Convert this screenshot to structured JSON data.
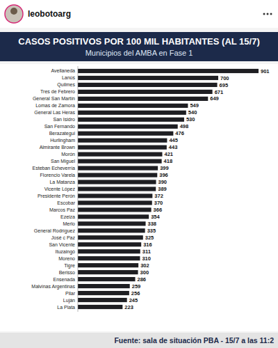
{
  "header": {
    "username": "leobotoarg"
  },
  "chart_data": {
    "type": "bar",
    "orientation": "horizontal",
    "title": "CASOS POSITIVOS POR 100 MIL HABITANTES (AL 15/7)",
    "subtitle": "Municipios del AMBA en Fase 1",
    "annotations": [
      "Fuente: sala de situación  PBA - 15/7 a las 11:2"
    ],
    "categories": [
      "Avellaneda",
      "Lanús",
      "Quilmes",
      "Tres de Febrero",
      "General San Martín",
      "Lomas de Zamora",
      "General Las Heras",
      "San Isidro",
      "San Fernando",
      "Berazategui",
      "Hurlingham",
      "Almirante Brown",
      "Morón",
      "San Miguel",
      "Esteban Echeverría",
      "Florencio Varela",
      "La Matanza",
      "Vicente López",
      "Presidente Perón",
      "Escobar",
      "Marcos Paz",
      "Ezeiza",
      "Merlo",
      "General Rodríguez",
      "José c Paz",
      "San Vicente",
      "Ituzaingó",
      "Moreno",
      "Tigre",
      "Berisso",
      "Ensenada",
      "Malvinas Argentinas",
      "Pilar",
      "Luján",
      "La Plata"
    ],
    "values": [
      901,
      700,
      695,
      671,
      649,
      549,
      540,
      530,
      498,
      476,
      445,
      443,
      421,
      418,
      399,
      396,
      390,
      389,
      372,
      370,
      366,
      354,
      338,
      335,
      325,
      316,
      311,
      310,
      302,
      300,
      286,
      259,
      256,
      245,
      223
    ],
    "color": "#1e1e22",
    "xlim": [
      0,
      901
    ],
    "data_labels": true,
    "tick_labels": "y",
    "grid": false
  }
}
